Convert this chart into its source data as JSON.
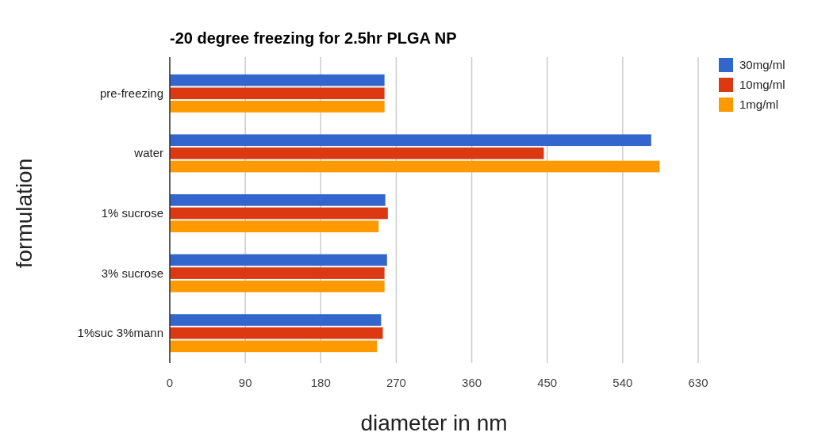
{
  "chart_data": {
    "type": "bar",
    "orientation": "horizontal",
    "title": "-20 degree freezing for 2.5hr PLGA NP",
    "xlabel": "diameter in nm",
    "ylabel": "formulation",
    "categories": [
      "pre-freezing",
      "water",
      "1% sucrose",
      "3% sucrose",
      "1%suc 3%mann"
    ],
    "series": [
      {
        "name": "30mg/ml",
        "color": "#3366cc",
        "values": [
          256,
          574,
          257,
          259,
          252
        ]
      },
      {
        "name": "10mg/ml",
        "color": "#dc3912",
        "values": [
          256,
          446,
          260,
          256,
          254
        ]
      },
      {
        "name": "1mg/ml",
        "color": "#ff9900",
        "values": [
          256,
          584,
          249,
          256,
          247
        ]
      }
    ],
    "xlim": [
      0,
      630
    ],
    "xticks": [
      0,
      90,
      180,
      270,
      360,
      450,
      540,
      630
    ],
    "grid": "x",
    "legend": "top right"
  }
}
